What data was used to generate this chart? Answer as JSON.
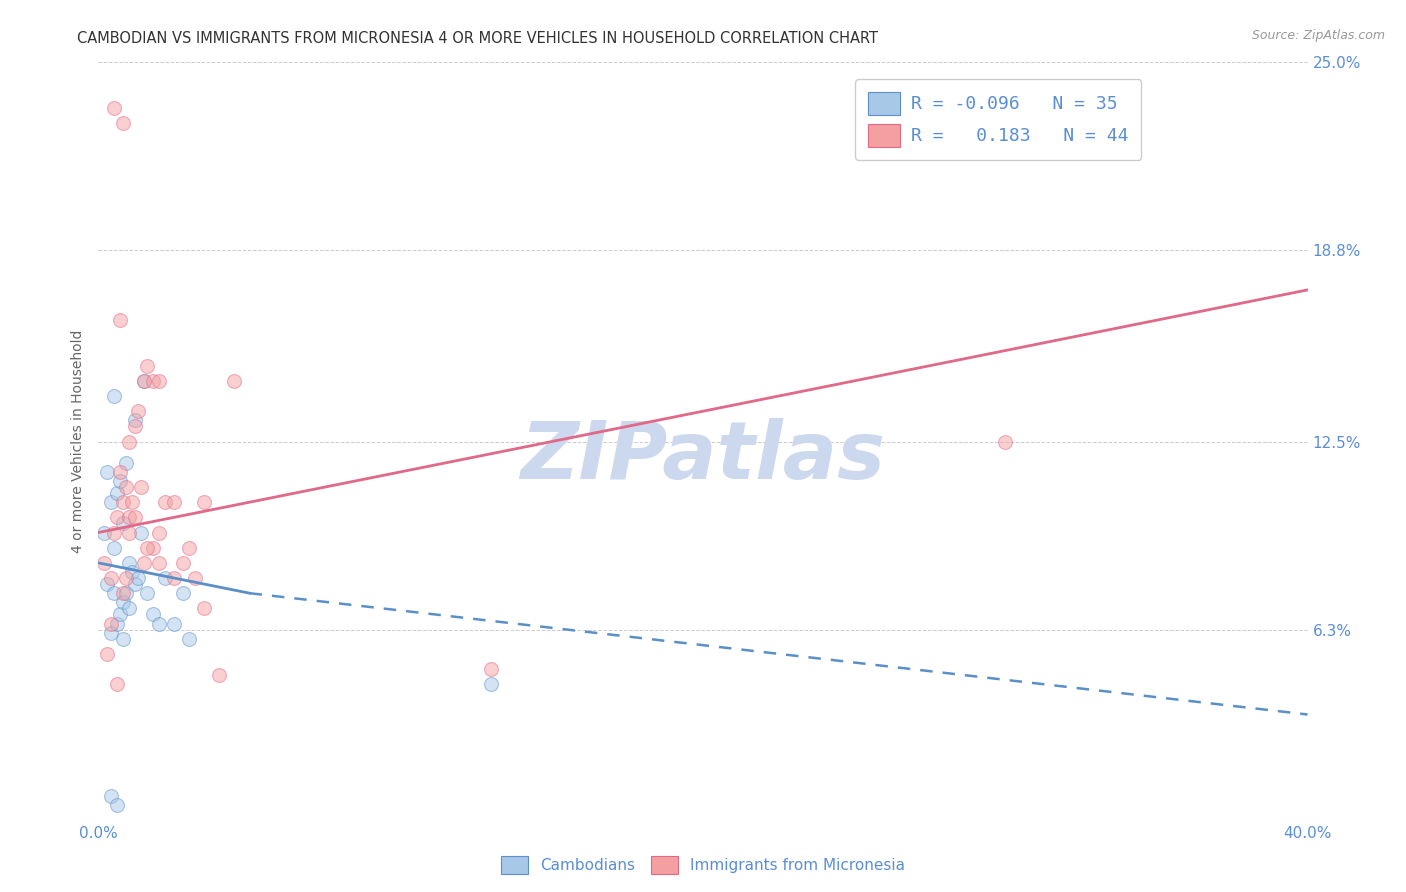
{
  "title": "CAMBODIAN VS IMMIGRANTS FROM MICRONESIA 4 OR MORE VEHICLES IN HOUSEHOLD CORRELATION CHART",
  "source": "Source: ZipAtlas.com",
  "ylabel": "4 or more Vehicles in Household",
  "xlim": [
    0.0,
    40.0
  ],
  "ylim": [
    0.0,
    25.0
  ],
  "xticks": [
    0.0,
    8.0,
    16.0,
    24.0,
    32.0,
    40.0
  ],
  "xticklabels": [
    "0.0%",
    "",
    "",
    "",
    "",
    "40.0%"
  ],
  "yticks": [
    0.0,
    6.3,
    12.5,
    18.8,
    25.0
  ],
  "yticklabels": [
    "",
    "6.3%",
    "12.5%",
    "18.8%",
    "25.0%"
  ],
  "watermark": "ZIPatlas",
  "blue_scatter_x": [
    0.2,
    0.3,
    0.3,
    0.4,
    0.4,
    0.5,
    0.5,
    0.5,
    0.6,
    0.6,
    0.7,
    0.7,
    0.8,
    0.8,
    0.8,
    0.9,
    0.9,
    1.0,
    1.0,
    1.1,
    1.2,
    1.2,
    1.3,
    1.4,
    1.5,
    1.6,
    1.8,
    2.0,
    2.2,
    2.5,
    2.8,
    3.0,
    0.4,
    0.6,
    13.0
  ],
  "blue_scatter_y": [
    9.5,
    11.5,
    7.8,
    10.5,
    6.2,
    14.0,
    9.0,
    7.5,
    10.8,
    6.5,
    11.2,
    6.8,
    9.8,
    7.2,
    6.0,
    11.8,
    7.5,
    8.5,
    7.0,
    8.2,
    13.2,
    7.8,
    8.0,
    9.5,
    14.5,
    7.5,
    6.8,
    6.5,
    8.0,
    6.5,
    7.5,
    6.0,
    0.8,
    0.5,
    4.5
  ],
  "pink_scatter_x": [
    0.2,
    0.3,
    0.4,
    0.5,
    0.5,
    0.6,
    0.7,
    0.7,
    0.8,
    0.8,
    0.9,
    0.9,
    1.0,
    1.0,
    1.0,
    1.1,
    1.2,
    1.3,
    1.4,
    1.5,
    1.5,
    1.6,
    1.8,
    1.8,
    2.0,
    2.0,
    2.2,
    2.5,
    2.8,
    3.0,
    3.2,
    3.5,
    3.5,
    4.0,
    4.5,
    0.4,
    0.6,
    0.8,
    1.2,
    1.6,
    2.0,
    2.5,
    30.0,
    13.0
  ],
  "pink_scatter_y": [
    8.5,
    5.5,
    8.0,
    23.5,
    9.5,
    10.0,
    16.5,
    11.5,
    23.0,
    10.5,
    11.0,
    8.0,
    12.5,
    10.0,
    9.5,
    10.5,
    13.0,
    13.5,
    11.0,
    14.5,
    8.5,
    15.0,
    14.5,
    9.0,
    14.5,
    9.5,
    10.5,
    10.5,
    8.5,
    9.0,
    8.0,
    10.5,
    7.0,
    4.8,
    14.5,
    6.5,
    4.5,
    7.5,
    10.0,
    9.0,
    8.5,
    8.0,
    12.5,
    5.0
  ],
  "blue_line_x0": 0.0,
  "blue_line_x1": 5.0,
  "blue_line_y0": 8.5,
  "blue_line_y1": 7.5,
  "blue_dash_x0": 5.0,
  "blue_dash_x1": 40.0,
  "blue_dash_y0": 7.5,
  "blue_dash_y1": 3.5,
  "pink_line_x0": 0.0,
  "pink_line_x1": 40.0,
  "pink_line_y0": 9.5,
  "pink_line_y1": 17.5,
  "scatter_size": 100,
  "scatter_alpha": 0.5,
  "blue_color": "#a8c8e8",
  "pink_color": "#f4a0a0",
  "blue_edge_color": "#5a8fc8",
  "pink_edge_color": "#e06888",
  "grid_color": "#cccccc",
  "title_color": "#333333",
  "axis_label_color": "#666666",
  "tick_label_color": "#5a8ed4",
  "watermark_color": "#ccd8ee",
  "background_color": "#ffffff",
  "title_fontsize": 10.5,
  "ylabel_fontsize": 10,
  "tick_fontsize": 11,
  "watermark_fontsize": 58,
  "legend_fontsize": 13
}
